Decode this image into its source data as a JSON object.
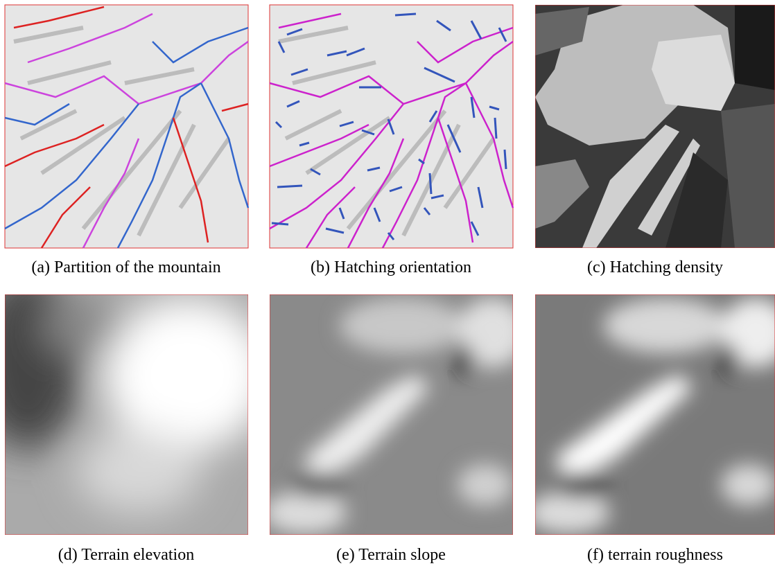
{
  "figure": {
    "panels": [
      {
        "caption": "(a) Partition of the mountain"
      },
      {
        "caption": "(b) Hatching orientation"
      },
      {
        "caption": "(c) Hatching density"
      },
      {
        "caption": "(d) Terrain elevation"
      },
      {
        "caption": "(e) Terrain slope"
      },
      {
        "caption": "(f) terrain roughness"
      }
    ]
  }
}
